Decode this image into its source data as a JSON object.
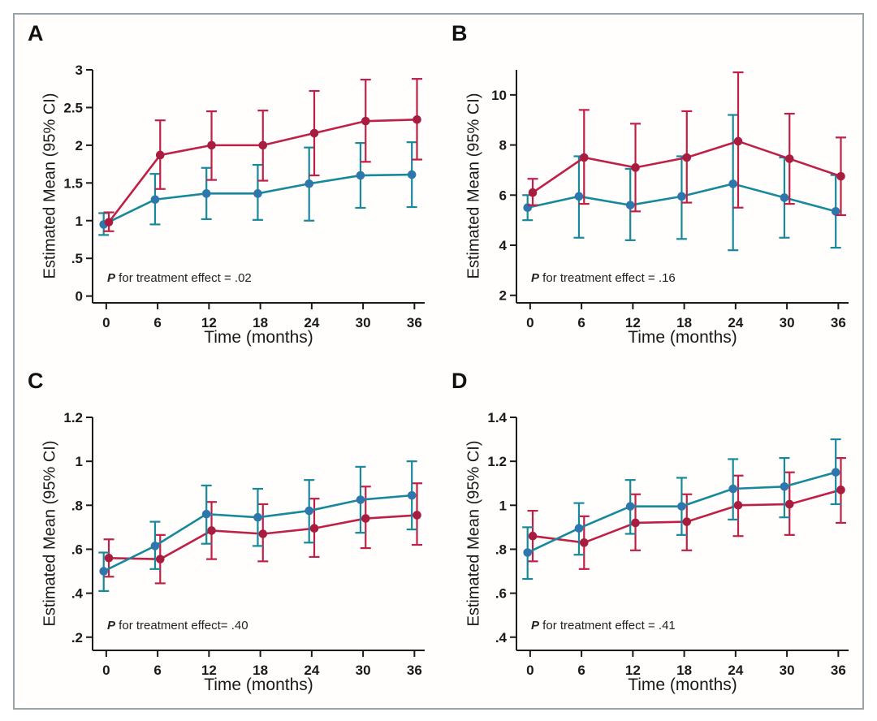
{
  "style": {
    "axis_color": "#1a1a1a",
    "red_line": "#bf2045",
    "red_marker": "#a81c40",
    "teal_line": "#17899b",
    "teal_marker": "#2e77ad",
    "frame_border": "#9aa3a8"
  },
  "chart_data": [
    {
      "type": "line",
      "panel_label": "A",
      "xlabel": "Time (months)",
      "ylabel": "Estimated Mean (95% CI)",
      "p_italic": "P",
      "p_text": " for treatment effect = .02",
      "x": [
        0,
        6,
        12,
        18,
        24,
        30,
        36
      ],
      "xlim": [
        -1.6,
        37.2
      ],
      "ylim": [
        -0.09,
        3.0
      ],
      "xticks": [
        {
          "v": 0,
          "label": "0"
        },
        {
          "v": 6,
          "label": "6"
        },
        {
          "v": 12,
          "label": "12"
        },
        {
          "v": 18,
          "label": "18"
        },
        {
          "v": 24,
          "label": "24"
        },
        {
          "v": 30,
          "label": "30"
        },
        {
          "v": 36,
          "label": "36"
        }
      ],
      "yticks": [
        {
          "v": 0,
          "label": "0"
        },
        {
          "v": 0.5,
          "label": ".5"
        },
        {
          "v": 1,
          "label": "1"
        },
        {
          "v": 1.5,
          "label": "1.5"
        },
        {
          "v": 2,
          "label": "2"
        },
        {
          "v": 2.5,
          "label": "2.5"
        },
        {
          "v": 3,
          "label": "3"
        }
      ],
      "series": [
        {
          "name": "teal",
          "x_offset": -0.3,
          "line_color": "#17899b",
          "marker_color": "#2e77ad",
          "values": [
            0.95,
            1.28,
            1.36,
            1.36,
            1.49,
            1.6,
            1.61
          ],
          "lower": [
            0.81,
            0.95,
            1.02,
            1.01,
            1.0,
            1.17,
            1.18
          ],
          "upper": [
            1.1,
            1.62,
            1.7,
            1.74,
            1.97,
            2.03,
            2.04
          ]
        },
        {
          "name": "red",
          "x_offset": 0.3,
          "line_color": "#bf2045",
          "marker_color": "#a81c40",
          "values": [
            0.98,
            1.87,
            2.0,
            2.0,
            2.16,
            2.32,
            2.34
          ],
          "lower": [
            0.86,
            1.42,
            1.54,
            1.53,
            1.6,
            1.78,
            1.81
          ],
          "upper": [
            1.11,
            2.33,
            2.45,
            2.46,
            2.72,
            2.87,
            2.88
          ]
        }
      ]
    },
    {
      "type": "line",
      "panel_label": "B",
      "xlabel": "Time (months)",
      "ylabel": "Estimated Mean (95% CI)",
      "p_italic": "P",
      "p_text": " for treatment effect = .16",
      "x": [
        0,
        6,
        12,
        18,
        24,
        30,
        36
      ],
      "xlim": [
        -1.6,
        37.2
      ],
      "ylim": [
        1.7,
        11.0
      ],
      "xticks": [
        {
          "v": 0,
          "label": "0"
        },
        {
          "v": 6,
          "label": "6"
        },
        {
          "v": 12,
          "label": "12"
        },
        {
          "v": 18,
          "label": "18"
        },
        {
          "v": 24,
          "label": "24"
        },
        {
          "v": 30,
          "label": "30"
        },
        {
          "v": 36,
          "label": "36"
        }
      ],
      "yticks": [
        {
          "v": 2,
          "label": "2"
        },
        {
          "v": 4,
          "label": "4"
        },
        {
          "v": 6,
          "label": "6"
        },
        {
          "v": 8,
          "label": "8"
        },
        {
          "v": 10,
          "label": "10"
        }
      ],
      "series": [
        {
          "name": "teal",
          "x_offset": -0.3,
          "line_color": "#17899b",
          "marker_color": "#2e77ad",
          "values": [
            5.5,
            5.95,
            5.6,
            5.95,
            6.45,
            5.9,
            5.35
          ],
          "lower": [
            5.0,
            4.3,
            4.2,
            4.25,
            3.8,
            4.3,
            3.9
          ],
          "upper": [
            6.0,
            7.55,
            7.05,
            7.55,
            9.2,
            7.5,
            6.8
          ]
        },
        {
          "name": "red",
          "x_offset": 0.3,
          "line_color": "#bf2045",
          "marker_color": "#a81c40",
          "values": [
            6.1,
            7.5,
            7.1,
            7.5,
            8.15,
            7.45,
            6.75
          ],
          "lower": [
            5.6,
            5.65,
            5.35,
            5.7,
            5.5,
            5.65,
            5.2
          ],
          "upper": [
            6.65,
            9.4,
            8.85,
            9.35,
            10.9,
            9.25,
            8.3
          ]
        }
      ]
    },
    {
      "type": "line",
      "panel_label": "C",
      "xlabel": "Time (months)",
      "ylabel": "Estimated Mean (95% CI)",
      "p_italic": "P",
      "p_text": " for treatment effect= .40",
      "x": [
        0,
        6,
        12,
        18,
        24,
        30,
        36
      ],
      "xlim": [
        -1.6,
        37.2
      ],
      "ylim": [
        0.14,
        1.2
      ],
      "xticks": [
        {
          "v": 0,
          "label": "0"
        },
        {
          "v": 6,
          "label": "6"
        },
        {
          "v": 12,
          "label": "12"
        },
        {
          "v": 18,
          "label": "18"
        },
        {
          "v": 24,
          "label": "24"
        },
        {
          "v": 30,
          "label": "30"
        },
        {
          "v": 36,
          "label": "36"
        }
      ],
      "yticks": [
        {
          "v": 0.2,
          "label": ".2"
        },
        {
          "v": 0.4,
          "label": ".4"
        },
        {
          "v": 0.6,
          "label": ".6"
        },
        {
          "v": 0.8,
          "label": ".8"
        },
        {
          "v": 1,
          "label": "1"
        },
        {
          "v": 1.2,
          "label": "1.2"
        }
      ],
      "series": [
        {
          "name": "red",
          "x_offset": 0.3,
          "line_color": "#bf2045",
          "marker_color": "#a81c40",
          "values": [
            0.56,
            0.555,
            0.685,
            0.67,
            0.695,
            0.74,
            0.755
          ],
          "lower": [
            0.475,
            0.445,
            0.555,
            0.545,
            0.565,
            0.605,
            0.62
          ],
          "upper": [
            0.645,
            0.665,
            0.815,
            0.805,
            0.83,
            0.885,
            0.9
          ]
        },
        {
          "name": "teal",
          "x_offset": -0.3,
          "line_color": "#17899b",
          "marker_color": "#2e77ad",
          "values": [
            0.5,
            0.615,
            0.76,
            0.745,
            0.775,
            0.825,
            0.845
          ],
          "lower": [
            0.41,
            0.51,
            0.625,
            0.615,
            0.63,
            0.675,
            0.69
          ],
          "upper": [
            0.585,
            0.725,
            0.89,
            0.875,
            0.915,
            0.975,
            1.0
          ]
        }
      ]
    },
    {
      "type": "line",
      "panel_label": "D",
      "xlabel": "Time (months)",
      "ylabel": "Estimated Mean (95% CI)",
      "p_italic": "P",
      "p_text": " for treatment effect = .41",
      "x": [
        0,
        6,
        12,
        18,
        24,
        30,
        36
      ],
      "xlim": [
        -1.6,
        37.2
      ],
      "ylim": [
        0.34,
        1.4
      ],
      "xticks": [
        {
          "v": 0,
          "label": "0"
        },
        {
          "v": 6,
          "label": "6"
        },
        {
          "v": 12,
          "label": "12"
        },
        {
          "v": 18,
          "label": "18"
        },
        {
          "v": 24,
          "label": "24"
        },
        {
          "v": 30,
          "label": "30"
        },
        {
          "v": 36,
          "label": "36"
        }
      ],
      "yticks": [
        {
          "v": 0.4,
          "label": ".4"
        },
        {
          "v": 0.6,
          "label": ".6"
        },
        {
          "v": 0.8,
          "label": ".8"
        },
        {
          "v": 1,
          "label": "1"
        },
        {
          "v": 1.2,
          "label": "1.2"
        },
        {
          "v": 1.4,
          "label": "1.4"
        }
      ],
      "series": [
        {
          "name": "red",
          "x_offset": 0.3,
          "line_color": "#bf2045",
          "marker_color": "#a81c40",
          "values": [
            0.86,
            0.83,
            0.92,
            0.925,
            1.0,
            1.005,
            1.07
          ],
          "lower": [
            0.745,
            0.71,
            0.795,
            0.795,
            0.86,
            0.865,
            0.92
          ],
          "upper": [
            0.975,
            0.95,
            1.05,
            1.05,
            1.135,
            1.15,
            1.215
          ]
        },
        {
          "name": "teal",
          "x_offset": -0.3,
          "line_color": "#17899b",
          "marker_color": "#2e77ad",
          "values": [
            0.785,
            0.895,
            0.995,
            0.995,
            1.075,
            1.085,
            1.15
          ],
          "lower": [
            0.665,
            0.775,
            0.87,
            0.865,
            0.935,
            0.945,
            1.005
          ],
          "upper": [
            0.9,
            1.01,
            1.115,
            1.125,
            1.21,
            1.215,
            1.3
          ]
        }
      ]
    }
  ]
}
